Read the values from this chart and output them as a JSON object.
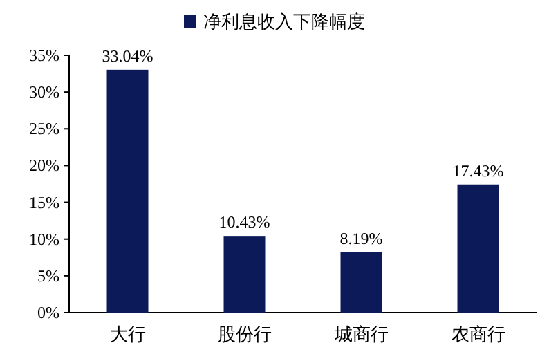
{
  "chart_data": {
    "type": "bar",
    "categories": [
      "大行",
      "股份行",
      "城商行",
      "农商行"
    ],
    "series": [
      {
        "name": "净利息收入下降幅度",
        "color": "#0c1a5a",
        "values": [
          33.04,
          10.43,
          8.19,
          17.43
        ],
        "value_labels": [
          "33.04%",
          "10.43%",
          "8.19%",
          "17.43%"
        ]
      }
    ],
    "ylim": [
      0,
      35
    ],
    "yticks": [
      {
        "value": 0,
        "label": "0%"
      },
      {
        "value": 5,
        "label": "5%"
      },
      {
        "value": 10,
        "label": "10%"
      },
      {
        "value": 15,
        "label": "15%"
      },
      {
        "value": 20,
        "label": "20%"
      },
      {
        "value": 25,
        "label": "25%"
      },
      {
        "value": 30,
        "label": "30%"
      },
      {
        "value": 35,
        "label": "35%"
      }
    ],
    "legend": "top",
    "grid": false
  }
}
